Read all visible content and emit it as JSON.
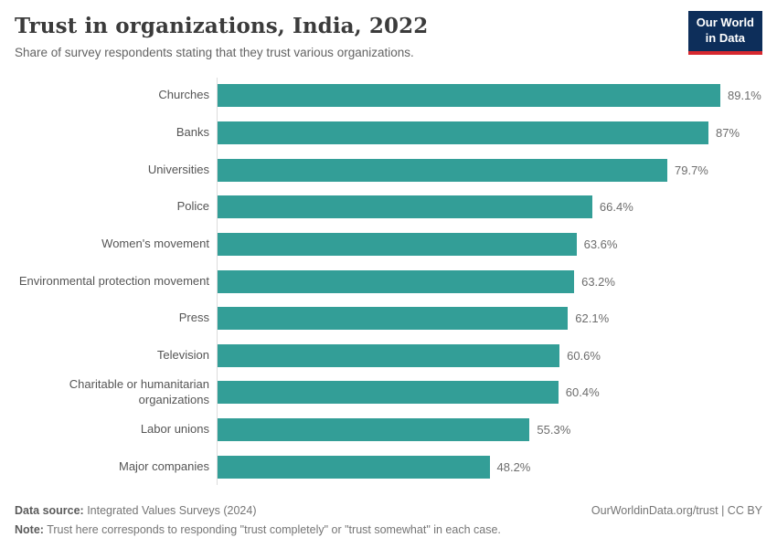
{
  "header": {
    "title": "Trust in organizations, India, 2022",
    "subtitle": "Share of survey respondents stating that they trust various organizations.",
    "logo": {
      "line1": "Our World",
      "line2": "in Data",
      "bg_color": "#0d2e5a",
      "accent_color": "#d7282f"
    }
  },
  "chart_data": {
    "type": "bar",
    "orientation": "horizontal",
    "title": "Trust in organizations, India, 2022",
    "xlabel": "",
    "ylabel": "",
    "categories": [
      "Churches",
      "Banks",
      "Universities",
      "Police",
      "Women's movement",
      "Environmental protection movement",
      "Press",
      "Television",
      "Charitable or humanitarian organizations",
      "Labor unions",
      "Major companies"
    ],
    "values": [
      89.1,
      87,
      79.7,
      66.4,
      63.6,
      63.2,
      62.1,
      60.6,
      60.4,
      55.3,
      48.2
    ],
    "value_labels": [
      "89.1%",
      "87%",
      "79.7%",
      "66.4%",
      "63.6%",
      "63.2%",
      "62.1%",
      "60.6%",
      "60.4%",
      "55.3%",
      "48.2%"
    ],
    "unit": "%",
    "xlim": [
      0,
      89.1
    ],
    "grid": false,
    "legend": "none",
    "bar_color": "#339e97",
    "axis_line_color": "#dcdcdc"
  },
  "footer": {
    "source_label": "Data source:",
    "source_value": " Integrated Values Surveys (2024)",
    "link": "OurWorldinData.org/trust | CC BY",
    "note_label": "Note:",
    "note_value": " Trust here corresponds to responding \"trust completely\" or \"trust somewhat\" in each case."
  }
}
